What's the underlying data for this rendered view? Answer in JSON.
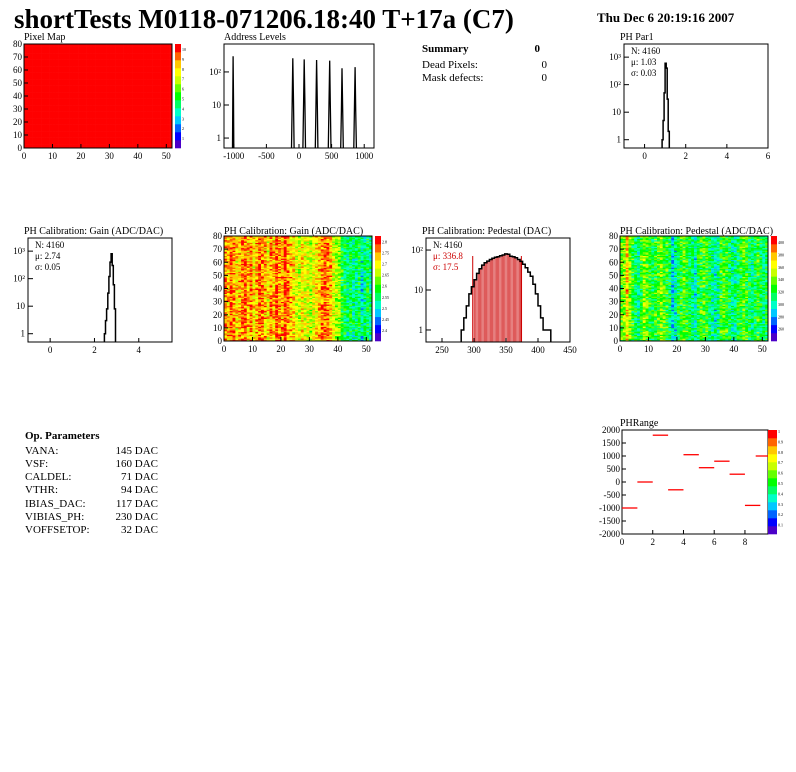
{
  "header": {
    "title": "shortTests M0118-071206.18:40 T+17a (C7)",
    "date": "Thu Dec  6 20:19:16 2007"
  },
  "colors": {
    "red": "#ff0000",
    "hist_line": "#000000",
    "fit_line": "#cc0000",
    "palette": [
      "#4b00c8",
      "#0000ff",
      "#0064ff",
      "#00c8ff",
      "#00ffc8",
      "#00ff64",
      "#00ff00",
      "#64ff00",
      "#c8ff00",
      "#ffff00",
      "#ffc800",
      "#ff6400",
      "#ff0000"
    ]
  },
  "summary": {
    "title": "Summary",
    "title_value": "0",
    "rows": [
      {
        "label": "Dead Pixels:",
        "value": "0"
      },
      {
        "label": "Mask defects:",
        "value": "0"
      }
    ]
  },
  "op_params": {
    "title": "Op. Parameters",
    "rows": [
      {
        "label": "VANA:",
        "value": "145 DAC"
      },
      {
        "label": "VSF:",
        "value": "160 DAC"
      },
      {
        "label": "CALDEL:",
        "value": "71 DAC"
      },
      {
        "label": "VTHR:",
        "value": "94 DAC"
      },
      {
        "label": "IBIAS_DAC:",
        "value": "117 DAC"
      },
      {
        "label": "VIBIAS_PH:",
        "value": "230 DAC"
      },
      {
        "label": "VOFFSETOP:",
        "value": "32 DAC"
      }
    ]
  },
  "chart_data": [
    {
      "id": "pixel_map",
      "type": "heatmap",
      "title": "Pixel Map",
      "xlim": [
        0,
        52
      ],
      "ylim": [
        0,
        80
      ],
      "xticks": [
        "0",
        "10",
        "20",
        "30",
        "40",
        "50"
      ],
      "yticks": [
        "0",
        "10",
        "20",
        "30",
        "40",
        "50",
        "60",
        "70",
        "80"
      ],
      "value_all": 10,
      "zlim": [
        0,
        10
      ],
      "zticks": [
        "1",
        "2",
        "3",
        "4",
        "5",
        "6",
        "7",
        "8",
        "9",
        "10"
      ]
    },
    {
      "id": "address_levels",
      "type": "histogram",
      "title": "Address Levels",
      "xlim": [
        -1150,
        1150
      ],
      "log_y": true,
      "ylim": [
        0.5,
        700
      ],
      "xticks": [
        "-1000",
        "-500",
        "0",
        "500",
        "1000"
      ],
      "yticks": [
        "1",
        "10",
        "10²"
      ],
      "peaks": [
        {
          "x": -1010,
          "y": 300,
          "width": 20
        },
        {
          "x": -95,
          "y": 260,
          "width": 40
        },
        {
          "x": 80,
          "y": 240,
          "width": 40
        },
        {
          "x": 270,
          "y": 230,
          "width": 40
        },
        {
          "x": 470,
          "y": 220,
          "width": 40
        },
        {
          "x": 660,
          "y": 130,
          "width": 40
        },
        {
          "x": 860,
          "y": 140,
          "width": 40
        }
      ]
    },
    {
      "id": "ph_par1",
      "type": "histogram",
      "title": "PH Par1",
      "xlim": [
        -1,
        6
      ],
      "log_y": true,
      "ylim": [
        0.5,
        3000
      ],
      "xticks": [
        "0",
        "2",
        "4",
        "6"
      ],
      "yticks": [
        "1",
        "10",
        "10²",
        "10³"
      ],
      "stats": {
        "n": "N: 4160",
        "mean": "μ: 1.03",
        "sigma": "σ: 0.03"
      },
      "bins": {
        "x0": 0.85,
        "dx": 0.05,
        "values": [
          1,
          5,
          50,
          600,
          400,
          30,
          2
        ]
      }
    },
    {
      "id": "ph_gain_hist",
      "type": "histogram",
      "title": "PH Calibration: Gain (ADC/DAC)",
      "xlim": [
        -1,
        5.5
      ],
      "log_y": true,
      "ylim": [
        0.5,
        3000
      ],
      "xticks": [
        "0",
        "2",
        "4"
      ],
      "yticks": [
        "1",
        "10",
        "10²",
        "10³"
      ],
      "stats": {
        "n": "N: 4160",
        "mean": "μ: 2.74",
        "sigma": "σ: 0.05"
      },
      "bins": {
        "x0": 2.45,
        "dx": 0.05,
        "values": [
          1,
          3,
          8,
          30,
          120,
          400,
          800,
          300,
          60,
          8
        ]
      }
    },
    {
      "id": "ph_gain_map",
      "type": "heatmap",
      "title": "PH Calibration: Gain (ADC/DAC)",
      "xlim": [
        0,
        52
      ],
      "ylim": [
        0,
        80
      ],
      "xticks": [
        "0",
        "10",
        "20",
        "30",
        "40",
        "50"
      ],
      "yticks": [
        "0",
        "10",
        "20",
        "30",
        "40",
        "50",
        "60",
        "70",
        "80"
      ],
      "zlim": [
        2.4,
        2.9
      ],
      "zticks": [
        "2.4",
        "2.45",
        "2.5",
        "2.55",
        "2.6",
        "2.65",
        "2.7",
        "2.75",
        "2.8"
      ],
      "column_levels": [
        0.85,
        0.8,
        0.9,
        0.85,
        0.75,
        0.8,
        0.85,
        0.9,
        0.8,
        0.85,
        0.75,
        0.8,
        0.9,
        0.85,
        0.8,
        0.75,
        0.85,
        0.8,
        0.9,
        0.85,
        0.8,
        0.95,
        0.85,
        0.8,
        0.75,
        0.7,
        0.65,
        0.75,
        0.7,
        0.7,
        0.65,
        0.7,
        0.75,
        0.8,
        0.85,
        0.9,
        0.85,
        0.8,
        0.7,
        0.65,
        0.6,
        0.5,
        0.45,
        0.4,
        0.45,
        0.4,
        0.4,
        0.45,
        0.35,
        0.4,
        0.45,
        0.4
      ]
    },
    {
      "id": "ph_pedestal_hist",
      "type": "histogram",
      "title": "PH Calibration: Pedestal (DAC)",
      "xlim": [
        225,
        450
      ],
      "log_y": true,
      "ylim": [
        0.5,
        200
      ],
      "xticks": [
        "250",
        "300",
        "350",
        "400",
        "450"
      ],
      "yticks": [
        "1",
        "10",
        "10²"
      ],
      "stats": {
        "n": "N: 4160",
        "mean": "μ: 336.8",
        "sigma": "σ: 17.5"
      },
      "fit_range": [
        298,
        374
      ],
      "bins": {
        "x0": 280,
        "dx": 4,
        "values": [
          1,
          2,
          4,
          8,
          12,
          18,
          26,
          34,
          42,
          48,
          53,
          58,
          62,
          66,
          68,
          72,
          75,
          80,
          78,
          70,
          68,
          64,
          58,
          52,
          44,
          36,
          28,
          22,
          14,
          8,
          4,
          2,
          1,
          1,
          1
        ]
      }
    },
    {
      "id": "ph_pedestal_map",
      "type": "heatmap",
      "title": "PH Calibration: Pedestal (ADC/DAC)",
      "xlim": [
        0,
        52
      ],
      "ylim": [
        0,
        80
      ],
      "xticks": [
        "0",
        "10",
        "20",
        "30",
        "40",
        "50"
      ],
      "yticks": [
        "0",
        "10",
        "20",
        "30",
        "40",
        "50",
        "60",
        "70",
        "80"
      ],
      "zlim": [
        260,
        410
      ],
      "zticks": [
        "260",
        "280",
        "300",
        "320",
        "340",
        "360",
        "380",
        "400"
      ],
      "column_levels": [
        0.55,
        0.6,
        0.8,
        0.6,
        0.5,
        0.45,
        0.4,
        0.5,
        0.6,
        0.55,
        0.5,
        0.45,
        0.5,
        0.55,
        0.6,
        0.55,
        0.5,
        0.45,
        0.3,
        0.35,
        0.45,
        0.5,
        0.55,
        0.5,
        0.45,
        0.4,
        0.35,
        0.45,
        0.5,
        0.55,
        0.5,
        0.45,
        0.4,
        0.35,
        0.4,
        0.5,
        0.55,
        0.5,
        0.45,
        0.4,
        0.4,
        0.45,
        0.5,
        0.55,
        0.5,
        0.45,
        0.4,
        0.45,
        0.5,
        0.45,
        0.4,
        0.45
      ]
    },
    {
      "id": "ph_range",
      "type": "scatter",
      "title": "PHRange",
      "xlim": [
        0,
        9.5
      ],
      "ylim": [
        -2000,
        2000
      ],
      "xticks": [
        "0",
        "2",
        "4",
        "6",
        "8"
      ],
      "yticks": [
        "2000",
        "1500",
        "1000",
        "500",
        "0",
        "-500",
        "-1000",
        "-1500",
        "-2000"
      ],
      "zticks": [
        "0.1",
        "0.2",
        "0.3",
        "0.4",
        "0.5",
        "0.6",
        "0.7",
        "0.8",
        "0.9",
        "1"
      ],
      "segments": [
        {
          "x0": 0,
          "x1": 1,
          "y": -1000
        },
        {
          "x0": 1,
          "x1": 2,
          "y": 0
        },
        {
          "x0": 2,
          "x1": 3,
          "y": 1800
        },
        {
          "x0": 3,
          "x1": 4,
          "y": -300
        },
        {
          "x0": 4,
          "x1": 5,
          "y": 1050
        },
        {
          "x0": 5,
          "x1": 6,
          "y": 550
        },
        {
          "x0": 6,
          "x1": 7,
          "y": 800
        },
        {
          "x0": 7,
          "x1": 8,
          "y": 300
        },
        {
          "x0": 8,
          "x1": 9,
          "y": -900
        },
        {
          "x0": 8.7,
          "x1": 9.5,
          "y": 1000
        }
      ]
    }
  ]
}
